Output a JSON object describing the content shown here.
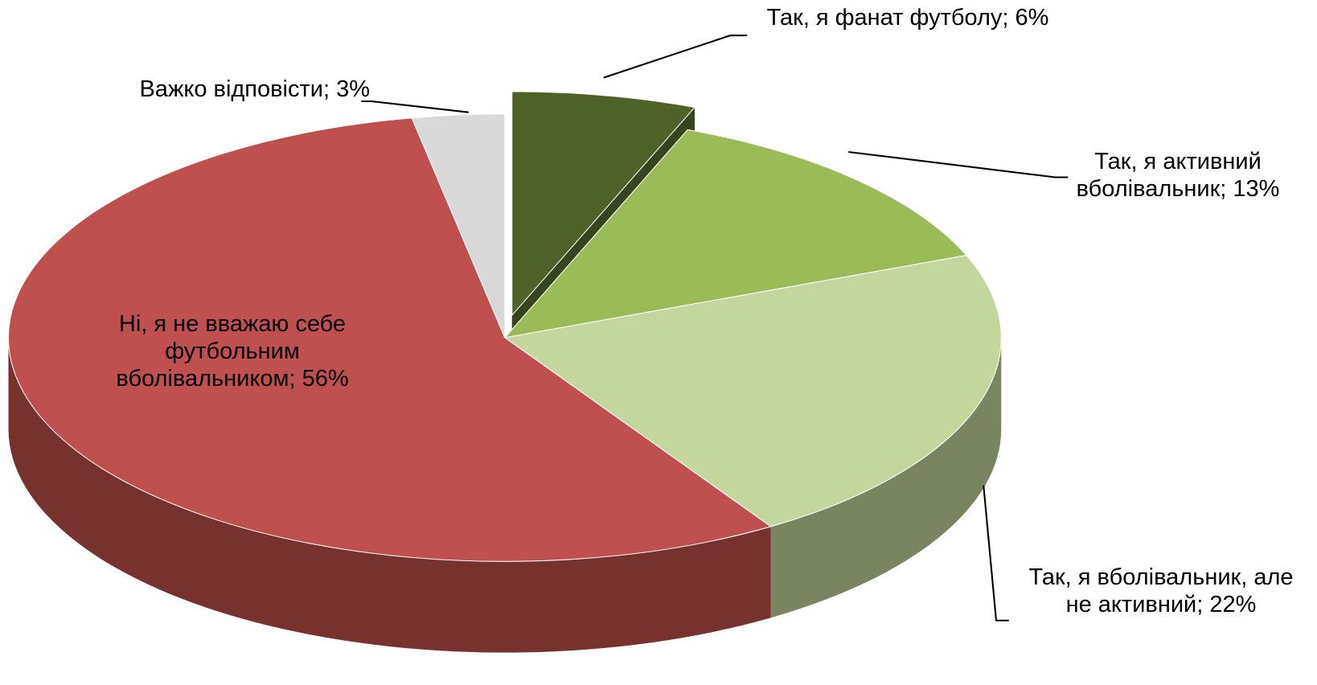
{
  "chart_data": {
    "type": "pie3d",
    "values": [
      6,
      13,
      22,
      56,
      3
    ],
    "value_labels": [
      "Так, я фанат футболу; 6%",
      "Так, я активний вболівальник; 13%",
      "Так, я вболівальник, але не активний; 22%",
      "Ні, я не вважаю себе футбольним вболівальником; 56%",
      "Важко відповісти; 3%"
    ],
    "colors": [
      "#4f6228",
      "#9bbb59",
      "#c3d69b",
      "#c0504d",
      "#d9d9d9"
    ],
    "exploded": [
      0
    ]
  }
}
